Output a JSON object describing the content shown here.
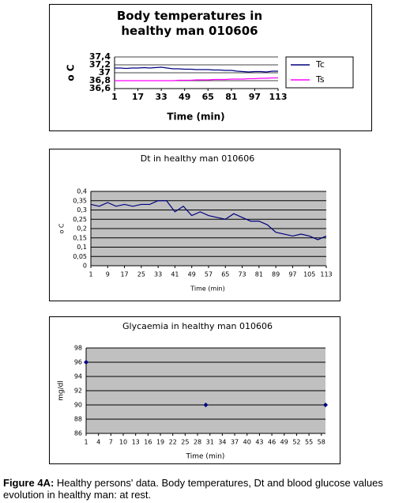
{
  "chart_data": [
    {
      "type": "line",
      "title": "Body temperatures in healthy man 010606",
      "x_label": "Time (min)",
      "y_label": "o C",
      "x": [
        1,
        5,
        9,
        13,
        17,
        21,
        25,
        29,
        33,
        37,
        41,
        45,
        49,
        53,
        57,
        61,
        65,
        69,
        73,
        77,
        81,
        85,
        89,
        93,
        97,
        101,
        105,
        109,
        113
      ],
      "series": [
        {
          "name": "Tc",
          "color": "#000080",
          "values": [
            37.12,
            37.12,
            37.11,
            37.12,
            37.12,
            37.13,
            37.12,
            37.13,
            37.14,
            37.12,
            37.1,
            37.1,
            37.09,
            37.09,
            37.08,
            37.08,
            37.08,
            37.07,
            37.07,
            37.06,
            37.06,
            37.04,
            37.03,
            37.02,
            37.03,
            37.03,
            37.02,
            37.04,
            37.04
          ]
        },
        {
          "name": "Ts",
          "color": "#ff00ff",
          "values": [
            36.8,
            36.8,
            36.8,
            36.8,
            36.8,
            36.8,
            36.8,
            36.8,
            36.8,
            36.8,
            36.8,
            36.81,
            36.81,
            36.81,
            36.82,
            36.82,
            36.82,
            36.83,
            36.83,
            36.83,
            36.84,
            36.84,
            36.84,
            36.85,
            36.85,
            36.86,
            36.86,
            36.87,
            36.87
          ]
        }
      ],
      "xlim": [
        1,
        113
      ],
      "xticks": [
        1,
        17,
        33,
        49,
        65,
        81,
        97,
        113
      ],
      "ylim": [
        36.6,
        37.4
      ],
      "yticks": [
        {
          "value": 36.6,
          "label": "36,6"
        },
        {
          "value": 36.8,
          "label": "36,8"
        },
        37,
        {
          "value": 37.2,
          "label": "37,2"
        },
        {
          "value": 37.4,
          "label": "37,4"
        }
      ],
      "grid": true,
      "legend": "right"
    },
    {
      "type": "line",
      "title": "Dt in healthy man 010606",
      "x_label": "Time (min)",
      "y_label": "o C",
      "x": [
        1,
        5,
        9,
        13,
        17,
        21,
        25,
        29,
        33,
        37,
        41,
        45,
        49,
        53,
        57,
        61,
        65,
        69,
        73,
        77,
        81,
        85,
        89,
        93,
        97,
        101,
        105,
        109,
        113
      ],
      "values": [
        0.33,
        0.32,
        0.34,
        0.32,
        0.33,
        0.32,
        0.33,
        0.33,
        0.35,
        0.35,
        0.29,
        0.32,
        0.27,
        0.29,
        0.27,
        0.26,
        0.25,
        0.28,
        0.26,
        0.24,
        0.24,
        0.22,
        0.18,
        0.17,
        0.16,
        0.17,
        0.16,
        0.14,
        0.16
      ],
      "color": "#000080",
      "xlim": [
        1,
        113
      ],
      "xticks": [
        1,
        9,
        17,
        25,
        33,
        41,
        49,
        57,
        65,
        73,
        81,
        89,
        97,
        105,
        113
      ],
      "ylim": [
        0,
        0.4
      ],
      "yticks": [
        0,
        {
          "value": 0.05,
          "label": "0,05"
        },
        {
          "value": 0.1,
          "label": "0,1"
        },
        {
          "value": 0.15,
          "label": "0,15"
        },
        {
          "value": 0.2,
          "label": "0,2"
        },
        {
          "value": 0.25,
          "label": "0,25"
        },
        {
          "value": 0.3,
          "label": "0,3"
        },
        {
          "value": 0.35,
          "label": "0,35"
        },
        {
          "value": 0.4,
          "label": "0,4"
        }
      ],
      "grid": true
    },
    {
      "type": "scatter",
      "title": "Glycaemia in healthy man 010606",
      "x_label": "Time (min)",
      "y_label": "mg/dl",
      "x": [
        1,
        30,
        59
      ],
      "values": [
        96,
        90,
        90
      ],
      "color": "#000080",
      "xlim": [
        1,
        59
      ],
      "xticks": [
        1,
        4,
        7,
        10,
        13,
        16,
        19,
        22,
        25,
        28,
        31,
        34,
        37,
        40,
        43,
        46,
        49,
        52,
        55,
        58
      ],
      "ylim": [
        86,
        98
      ],
      "yticks": [
        86,
        88,
        90,
        92,
        94,
        96,
        98
      ],
      "grid": true
    }
  ],
  "caption": {
    "label": "Figure 4A:",
    "text": "Healthy persons' data. Body temperatures, Dt and blood glucose values evolution in healthy man: at rest."
  }
}
